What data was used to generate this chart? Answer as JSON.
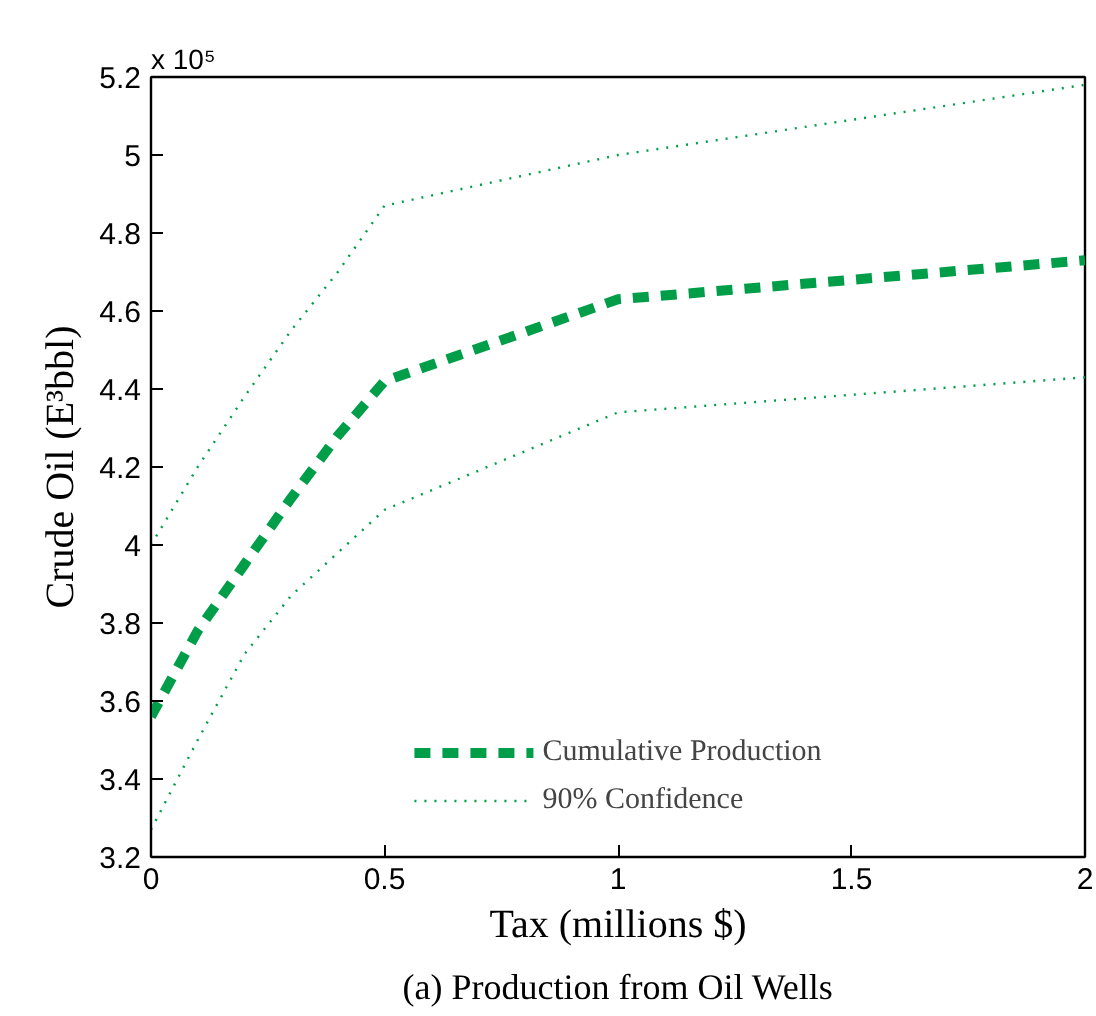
{
  "chart_data": {
    "type": "line",
    "xlabel": "Tax (millions $)",
    "ylabel": "Crude Oil (E³bbl)",
    "x": [
      0,
      0.1,
      0.2,
      0.3,
      0.4,
      0.5,
      1,
      2
    ],
    "series": [
      {
        "name": "Cumulative Production",
        "color": "#009e49",
        "line_style": "dashed",
        "values": [
          3.56,
          3.78,
          3.95,
          4.12,
          4.28,
          4.42,
          4.63,
          4.73
        ]
      },
      {
        "name": "90% Confidence",
        "color": "#009e49",
        "line_style": "dotted",
        "values": [
          4.0,
          4.2,
          4.38,
          4.55,
          4.7,
          4.87,
          5.0,
          5.18
        ]
      },
      {
        "color": "#009e49",
        "line_style": "dotted",
        "values": [
          3.27,
          3.5,
          3.72,
          3.87,
          3.98,
          4.09,
          4.34,
          4.43
        ]
      }
    ],
    "xlim": [
      0,
      2
    ],
    "xticks": [
      0,
      0.5,
      1,
      1.5,
      2
    ],
    "ylim": [
      3.2,
      5.2
    ],
    "yticks": [
      3.2,
      3.4,
      3.6,
      3.8,
      4,
      4.2,
      4.4,
      4.6,
      4.8,
      5,
      5.2
    ],
    "grid": false,
    "legend": "bottom",
    "marker": "none",
    "annotations": [
      "x 10⁵",
      "(a) Production from Oil Wells"
    ]
  }
}
